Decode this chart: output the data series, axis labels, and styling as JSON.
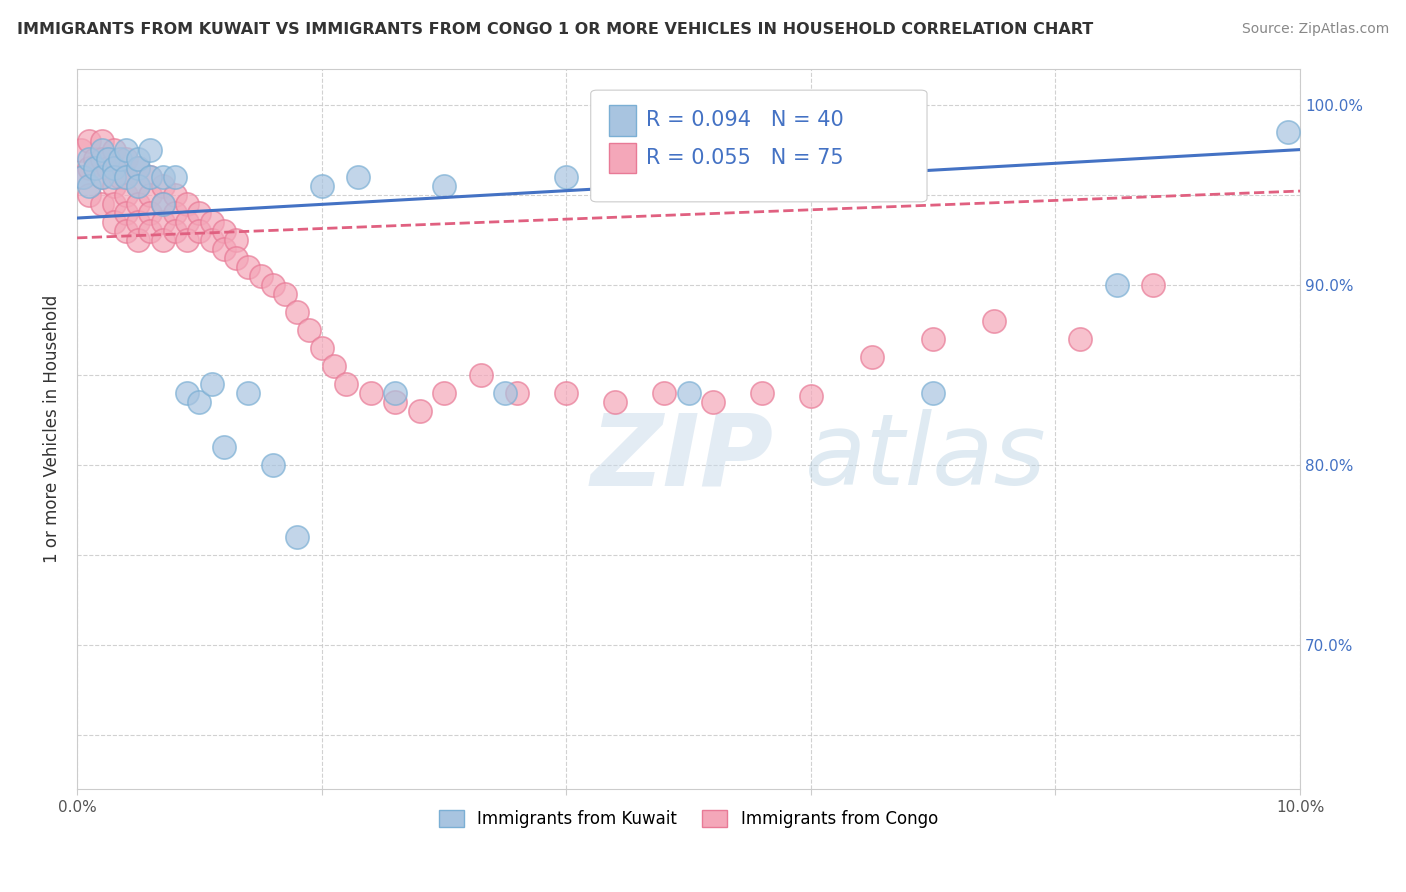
{
  "title": "IMMIGRANTS FROM KUWAIT VS IMMIGRANTS FROM CONGO 1 OR MORE VEHICLES IN HOUSEHOLD CORRELATION CHART",
  "source": "Source: ZipAtlas.com",
  "ylabel": "1 or more Vehicles in Household",
  "xmin": 0.0,
  "xmax": 0.1,
  "ymin": 0.62,
  "ymax": 1.02,
  "kuwait_color": "#a8c4e0",
  "congo_color": "#f4a7b9",
  "kuwait_edge": "#7bafd4",
  "congo_edge": "#e87a96",
  "line_kuwait_color": "#4472c4",
  "line_congo_color": "#e06080",
  "R_kuwait": 0.094,
  "N_kuwait": 40,
  "R_congo": 0.055,
  "N_congo": 75,
  "legend_label_kuwait": "Immigrants from Kuwait",
  "legend_label_congo": "Immigrants from Congo",
  "kuwait_x": [
    0.0005,
    0.001,
    0.001,
    0.0015,
    0.002,
    0.002,
    0.0025,
    0.003,
    0.003,
    0.0035,
    0.004,
    0.004,
    0.005,
    0.005,
    0.005,
    0.006,
    0.006,
    0.007,
    0.007,
    0.008,
    0.009,
    0.01,
    0.011,
    0.012,
    0.014,
    0.016,
    0.018,
    0.02,
    0.023,
    0.026,
    0.03,
    0.035,
    0.04,
    0.045,
    0.05,
    0.055,
    0.06,
    0.07,
    0.085,
    0.099
  ],
  "kuwait_y": [
    0.96,
    0.97,
    0.955,
    0.965,
    0.975,
    0.96,
    0.97,
    0.965,
    0.96,
    0.97,
    0.96,
    0.975,
    0.965,
    0.955,
    0.97,
    0.96,
    0.975,
    0.945,
    0.96,
    0.96,
    0.84,
    0.835,
    0.845,
    0.81,
    0.84,
    0.8,
    0.76,
    0.955,
    0.96,
    0.84,
    0.955,
    0.84,
    0.96,
    0.955,
    0.84,
    0.955,
    0.96,
    0.84,
    0.9,
    0.985
  ],
  "congo_x": [
    0.0003,
    0.0005,
    0.001,
    0.001,
    0.001,
    0.0015,
    0.002,
    0.002,
    0.002,
    0.002,
    0.0025,
    0.003,
    0.003,
    0.003,
    0.003,
    0.003,
    0.0035,
    0.004,
    0.004,
    0.004,
    0.004,
    0.004,
    0.005,
    0.005,
    0.005,
    0.005,
    0.005,
    0.006,
    0.006,
    0.006,
    0.006,
    0.007,
    0.007,
    0.007,
    0.007,
    0.008,
    0.008,
    0.008,
    0.009,
    0.009,
    0.009,
    0.01,
    0.01,
    0.011,
    0.011,
    0.012,
    0.012,
    0.013,
    0.013,
    0.014,
    0.015,
    0.016,
    0.017,
    0.018,
    0.019,
    0.02,
    0.021,
    0.022,
    0.024,
    0.026,
    0.028,
    0.03,
    0.033,
    0.036,
    0.04,
    0.044,
    0.048,
    0.052,
    0.056,
    0.06,
    0.065,
    0.07,
    0.075,
    0.082,
    0.088
  ],
  "congo_y": [
    0.975,
    0.96,
    0.98,
    0.965,
    0.95,
    0.97,
    0.98,
    0.97,
    0.96,
    0.945,
    0.965,
    0.975,
    0.965,
    0.955,
    0.945,
    0.935,
    0.96,
    0.97,
    0.96,
    0.95,
    0.94,
    0.93,
    0.965,
    0.955,
    0.945,
    0.935,
    0.925,
    0.96,
    0.95,
    0.94,
    0.93,
    0.955,
    0.945,
    0.935,
    0.925,
    0.95,
    0.94,
    0.93,
    0.945,
    0.935,
    0.925,
    0.94,
    0.93,
    0.935,
    0.925,
    0.93,
    0.92,
    0.925,
    0.915,
    0.91,
    0.905,
    0.9,
    0.895,
    0.885,
    0.875,
    0.865,
    0.855,
    0.845,
    0.84,
    0.835,
    0.83,
    0.84,
    0.85,
    0.84,
    0.84,
    0.835,
    0.84,
    0.835,
    0.84,
    0.838,
    0.86,
    0.87,
    0.88,
    0.87,
    0.9
  ],
  "watermark_zip": "ZIP",
  "watermark_atlas": "atlas",
  "grid_color": "#cccccc",
  "background_color": "#ffffff",
  "title_fontsize": 11.5,
  "source_fontsize": 10,
  "tick_fontsize": 11,
  "ylabel_fontsize": 12
}
